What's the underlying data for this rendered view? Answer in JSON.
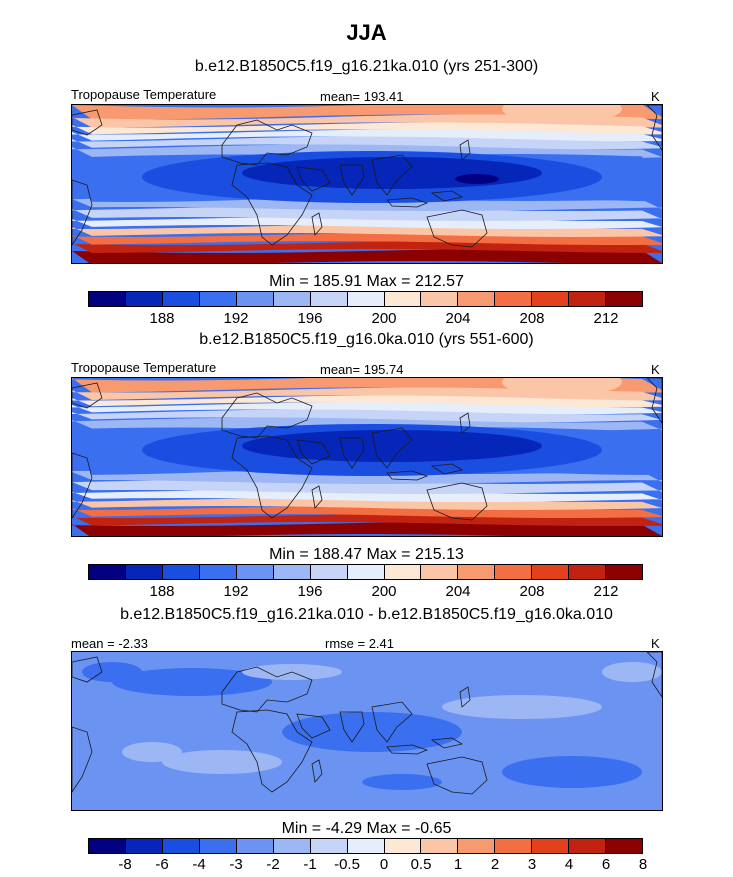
{
  "main_title": "JJA",
  "colors": {
    "temp_palette": [
      "#000080",
      "#0526b8",
      "#1a4ee0",
      "#3a6ff0",
      "#6b93f2",
      "#9db7f4",
      "#c6d5f7",
      "#e6eefb",
      "#fde8d5",
      "#fbc6a8",
      "#f89a6f",
      "#f36e42",
      "#e3401c",
      "#c12310",
      "#8b0000"
    ],
    "diff_palette": [
      "#000080",
      "#0526b8",
      "#1a4ee0",
      "#3a6ff0",
      "#6b93f2",
      "#9db7f4",
      "#c6d5f7",
      "#e6eefb",
      "#fde8d5",
      "#fbc6a8",
      "#f89a6f",
      "#f36e42",
      "#e3401c",
      "#c12310",
      "#8b0000"
    ],
    "coastline": "#1a1a1a"
  },
  "chart_data": [
    {
      "type": "heatmap",
      "title": "b.e12.B1850C5.f19_g16.21ka.010 (yrs 251-300)",
      "left_label": "Tropopause Temperature",
      "center_label": "mean= 193.41",
      "units": "K",
      "min_max": "Min = 185.91 Max = 212.57",
      "field_range": [
        185.91,
        212.57
      ],
      "colorbar_ticks": [
        "188",
        "192",
        "196",
        "200",
        "204",
        "208",
        "212"
      ],
      "colorbar_levels": [
        186,
        188,
        190,
        192,
        194,
        196,
        198,
        200,
        202,
        204,
        206,
        208,
        210,
        212
      ]
    },
    {
      "type": "heatmap",
      "title": "b.e12.B1850C5.f19_g16.0ka.010 (yrs 551-600)",
      "left_label": "Tropopause Temperature",
      "center_label": "mean= 195.74",
      "units": "K",
      "min_max": "Min = 188.47 Max = 215.13",
      "field_range": [
        188.47,
        215.13
      ],
      "colorbar_ticks": [
        "188",
        "192",
        "196",
        "200",
        "204",
        "208",
        "212"
      ],
      "colorbar_levels": [
        186,
        188,
        190,
        192,
        194,
        196,
        198,
        200,
        202,
        204,
        206,
        208,
        210,
        212
      ]
    },
    {
      "type": "heatmap",
      "title": "b.e12.B1850C5.f19_g16.21ka.010 - b.e12.B1850C5.f19_g16.0ka.010",
      "left_label": "mean =  -2.33",
      "center_label": "rmse =  2.41",
      "units": "K",
      "min_max": "Min =  -4.29 Max =  -0.65",
      "field_range": [
        -4.29,
        -0.65
      ],
      "colorbar_ticks": [
        "-8",
        "-6",
        "-4",
        "-3",
        "-2",
        "-1",
        "-0.5",
        "0",
        "0.5",
        "1",
        "2",
        "3",
        "4",
        "6",
        "8"
      ],
      "colorbar_levels": [
        -8,
        -6,
        -4,
        -3,
        -2,
        -1,
        -0.5,
        0,
        0.5,
        1,
        2,
        3,
        4,
        6,
        8
      ]
    }
  ]
}
